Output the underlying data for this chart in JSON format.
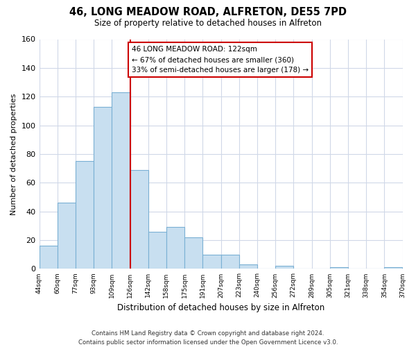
{
  "title": "46, LONG MEADOW ROAD, ALFRETON, DE55 7PD",
  "subtitle": "Size of property relative to detached houses in Alfreton",
  "xlabel": "Distribution of detached houses by size in Alfreton",
  "ylabel": "Number of detached properties",
  "tick_labels": [
    "44sqm",
    "60sqm",
    "77sqm",
    "93sqm",
    "109sqm",
    "126sqm",
    "142sqm",
    "158sqm",
    "175sqm",
    "191sqm",
    "207sqm",
    "223sqm",
    "240sqm",
    "256sqm",
    "272sqm",
    "289sqm",
    "305sqm",
    "321sqm",
    "338sqm",
    "354sqm",
    "370sqm"
  ],
  "bar_values": [
    16,
    46,
    75,
    113,
    123,
    69,
    26,
    29,
    22,
    10,
    10,
    3,
    0,
    2,
    0,
    0,
    1,
    0,
    0,
    1
  ],
  "bar_color": "#c8dff0",
  "bar_edge_color": "#7ab0d4",
  "ylim": [
    0,
    160
  ],
  "yticks": [
    0,
    20,
    40,
    60,
    80,
    100,
    120,
    140,
    160
  ],
  "property_line_x": 5,
  "property_line_color": "#cc0000",
  "annotation_line1": "46 LONG MEADOW ROAD: 122sqm",
  "annotation_line2": "← 67% of detached houses are smaller (360)",
  "annotation_line3": "33% of semi-detached houses are larger (178) →",
  "footer_line1": "Contains HM Land Registry data © Crown copyright and database right 2024.",
  "footer_line2": "Contains public sector information licensed under the Open Government Licence v3.0.",
  "background_color": "#ffffff",
  "grid_color": "#d0d8e8"
}
